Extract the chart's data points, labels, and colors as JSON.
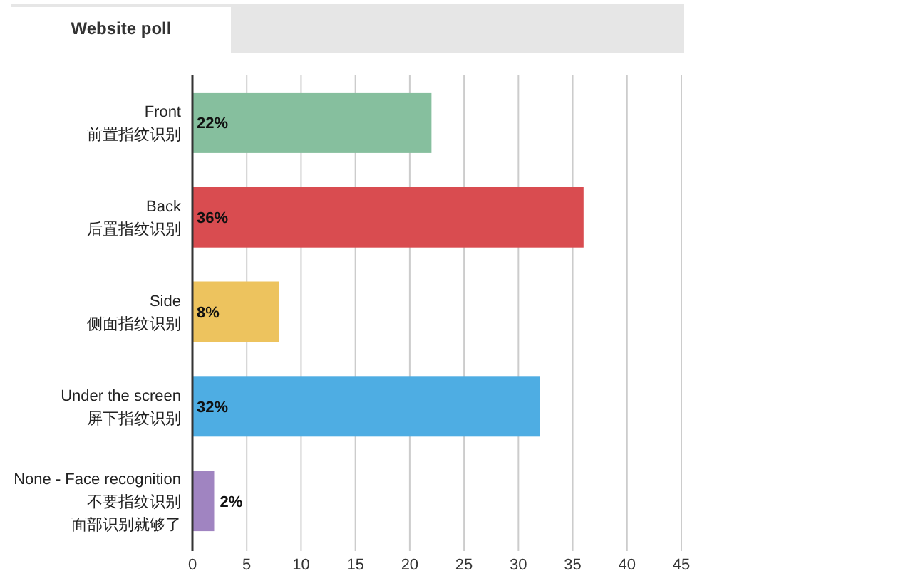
{
  "chart_data": {
    "type": "bar",
    "orientation": "horizontal",
    "title": "Website poll",
    "categories": [
      "Front\n前置指纹识别",
      "Back\n后置指纹识别",
      "Side\n侧面指纹识别",
      "Under the screen\n屏下指纹识别",
      "None - Face recognition\n不要指纹识别面部识别就够了"
    ],
    "values": [
      22,
      36,
      8,
      32,
      2
    ],
    "value_labels": [
      "22%",
      "36%",
      "8%",
      "32%",
      "2%"
    ],
    "colors": [
      "#86bf9e",
      "#d94c50",
      "#edc35e",
      "#4eade3",
      "#a084c1"
    ],
    "xlim": [
      0,
      45
    ],
    "xticks": [
      0,
      5,
      10,
      15,
      20,
      25,
      30,
      35,
      40,
      45
    ],
    "grid": "x"
  }
}
